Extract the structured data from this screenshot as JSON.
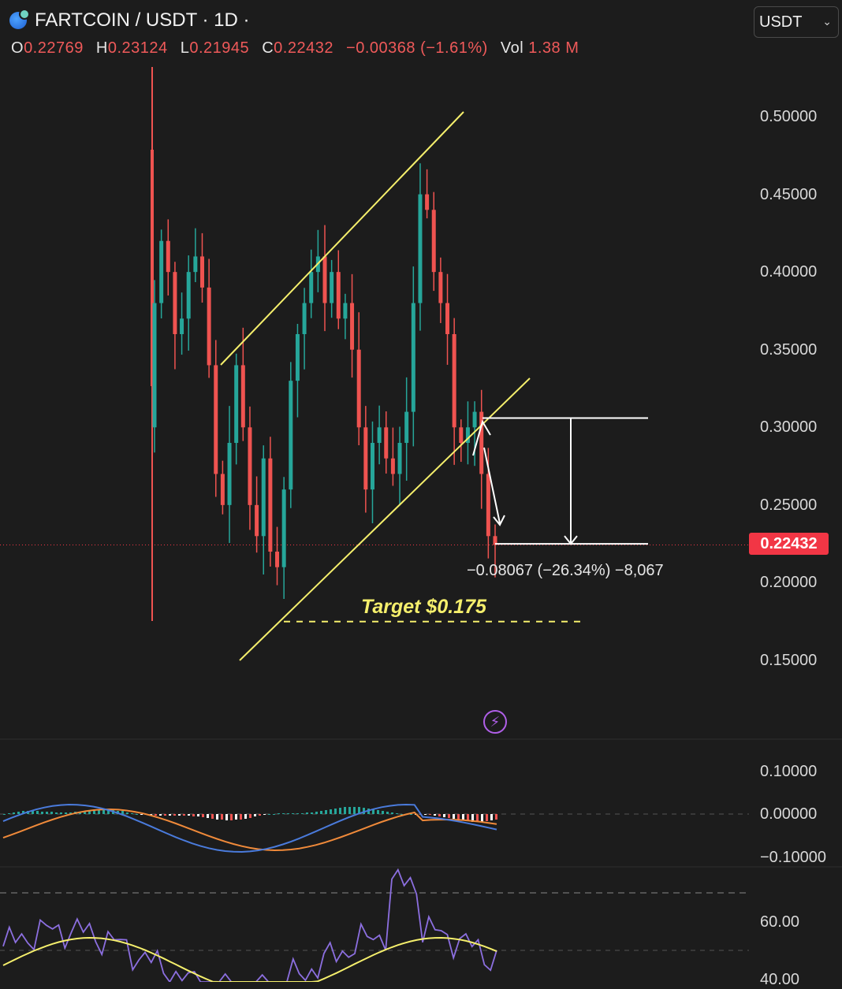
{
  "header": {
    "pair": "FARTCOIN / USDT · 1D ·",
    "ohlc": {
      "o_label": "O",
      "o": "0.22769",
      "h_label": "H",
      "h": "0.23124",
      "l_label": "L",
      "l": "0.21945",
      "c_label": "C",
      "c": "0.22432",
      "change": "−0.00368 (−1.61%)",
      "vol_label": "Vol",
      "vol": "1.38 M"
    }
  },
  "currency_select": {
    "value": "USDT"
  },
  "colors": {
    "up": "#26a69a",
    "down": "#ef5350",
    "channel": "#f5ef6c",
    "macd": "#4a7bdc",
    "signal": "#f08a3a",
    "rsi": "#8c6fe0",
    "rsi_ma": "#f5ef6c",
    "price_tag": "#f23645"
  },
  "chart_data": [
    {
      "type": "candlestick",
      "title": "",
      "y_ticks": [
        "0.50000",
        "0.45000",
        "0.40000",
        "0.35000",
        "0.30000",
        "0.25000",
        "0.20000",
        "0.15000"
      ],
      "ylim": [
        0.13,
        0.55
      ],
      "last_price": "0.22432",
      "approx_close_path": [
        0.38,
        0.42,
        0.4,
        0.36,
        0.37,
        0.4,
        0.41,
        0.39,
        0.34,
        0.27,
        0.25,
        0.29,
        0.34,
        0.3,
        0.25,
        0.23,
        0.28,
        0.22,
        0.21,
        0.26,
        0.33,
        0.36,
        0.38,
        0.4,
        0.41,
        0.38,
        0.4,
        0.37,
        0.38,
        0.35,
        0.3,
        0.26,
        0.29,
        0.3,
        0.28,
        0.27,
        0.29,
        0.31,
        0.38,
        0.45,
        0.44,
        0.4,
        0.38,
        0.36,
        0.3,
        0.29,
        0.3,
        0.31,
        0.27,
        0.23,
        0.2243
      ],
      "annotations": {
        "target_label": "Target $0.175",
        "target_price": 0.175,
        "measure_label": "−0.08067 (−26.34%) −8,067",
        "measure_from": 0.306,
        "measure_to": 0.225
      }
    },
    {
      "type": "macd",
      "y_ticks": [
        "0.10000",
        "0.00000",
        "−0.10000"
      ],
      "ylim": [
        -0.12,
        0.12
      ]
    },
    {
      "type": "rsi",
      "y_ticks": [
        "60.00",
        "40.00"
      ],
      "ylim": [
        35,
        80
      ]
    }
  ]
}
